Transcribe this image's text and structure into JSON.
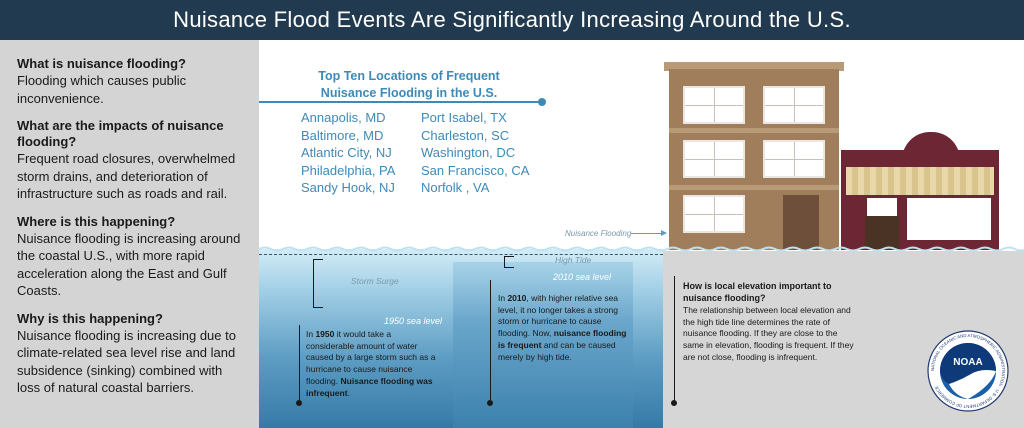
{
  "header": {
    "title": "Nuisance Flood Events Are Significantly Increasing Around the U.S."
  },
  "sidebar": {
    "faq": [
      {
        "q": "What is nuisance flooding?",
        "a": "Flooding which causes public inconvenience."
      },
      {
        "q": "What are the impacts of nuisance flooding?",
        "a": "Frequent road closures, overwhelmed storm drains, and deterioration of infrastructure such as roads and rail."
      },
      {
        "q": "Where is this happening?",
        "a": "Nuisance flooding is increasing around the coastal U.S., with more rapid acceleration along the East and Gulf Coasts."
      },
      {
        "q": "Why is this happening?",
        "a": "Nuisance flooding is increasing due to climate-related sea level rise and land subsidence (sinking) combined with loss of natural coastal barriers."
      }
    ]
  },
  "locations": {
    "title": "Top Ten Locations of Frequent Nuisance Flooding in the U.S.",
    "col1": [
      "Annapolis, MD",
      "Baltimore, MD",
      "Atlantic City, NJ",
      "Philadelphia, PA",
      "Sandy Hook, NJ"
    ],
    "col2": [
      "Port Isabel, TX",
      "Charleston, SC",
      "Washington, DC",
      "San Francisco, CA",
      "Norfolk , VA"
    ]
  },
  "diagram": {
    "nuisance_flooding_label": "Nuisance Flooding",
    "storm_surge_label": "Storm Surge",
    "high_tide_label": "High Tide",
    "sea_level_2010": "2010 sea level",
    "sea_level_1950": "1950 sea level",
    "text_1950": {
      "pre": "In ",
      "year": "1950",
      "mid": " it would take a considerable amount of water caused by a large storm such as a hurricane to cause nuisance flooding. ",
      "bold": "Nuisance flooding was infrequent",
      "post": "."
    },
    "text_2010": {
      "pre": "In ",
      "year": "2010",
      "mid": ", with higher relative sea level, it no longer takes a strong storm or hurricane to cause flooding. Now, ",
      "bold": "nuisance flooding is frequent",
      "post": " and can be caused merely by high tide."
    },
    "elevation": {
      "title": "How is local elevation important to nuisance flooding?",
      "text": "The relationship between local elevation and the high tide line determines the rate of nuisance flooding. If they are close to the same in elevation, flooding is frequent. If they are not close, flooding is infrequent."
    }
  },
  "logo": {
    "ring_text": "NATIONAL OCEANIC AND ATMOSPHERIC ADMINISTRATION · U.S. DEPARTMENT OF COMMERCE",
    "center": "NOAA"
  },
  "colors": {
    "header": "#223a4f",
    "accent": "#3d8ab9",
    "sidebar": "#d4d4d4",
    "building": "#a07e5b",
    "shop": "#6d2633"
  }
}
